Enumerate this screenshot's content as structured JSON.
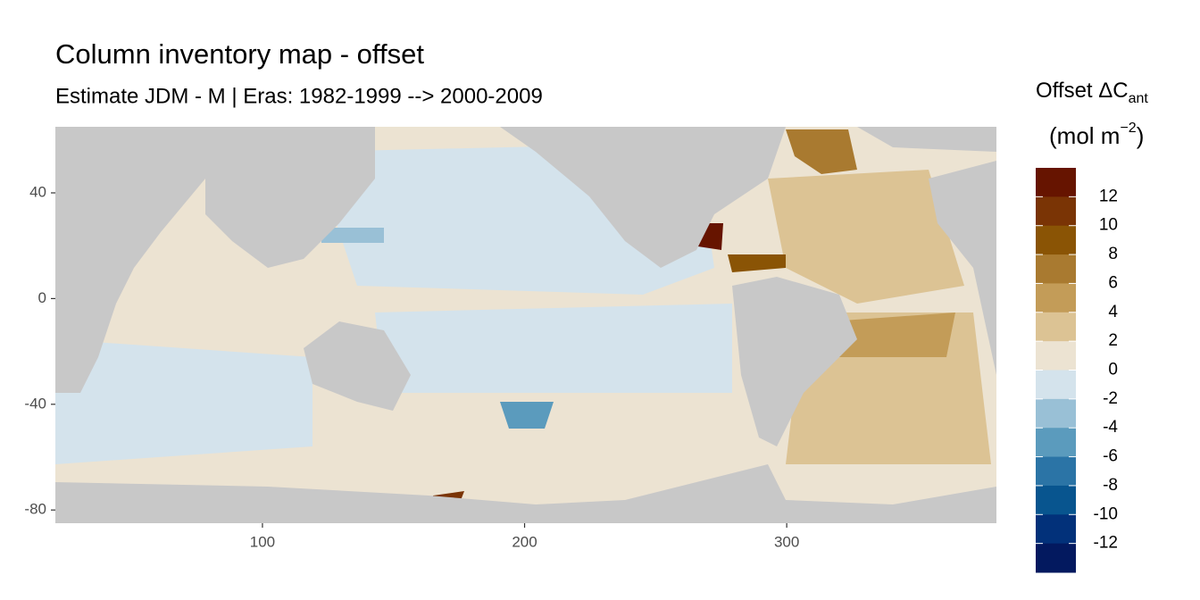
{
  "chart_data": {
    "type": "map",
    "title": "Column inventory map - offset",
    "subtitle": "Estimate JDM - M | Eras: 1982-1999 --> 2000-2009",
    "xlim": [
      21,
      380
    ],
    "xticks": [
      100,
      200,
      300
    ],
    "ylim": [
      -85,
      65
    ],
    "yticks": [
      40,
      0,
      -40,
      -80
    ],
    "legend": {
      "title": [
        "Offset ΔC",
        "ant"
      ],
      "units": [
        "(mol m",
        "−2",
        ")"
      ],
      "breaks": [
        12,
        10,
        8,
        6,
        4,
        2,
        0,
        -2,
        -4,
        -6,
        -8,
        -10,
        -12
      ],
      "colors": [
        "#661400",
        "#7a3405",
        "#8a5405",
        "#a97a30",
        "#c39c58",
        "#dcc394",
        "#ece3d2",
        "#d4e3ec",
        "#99c0d6",
        "#5b9bbd",
        "#2b74a6",
        "#08558f",
        "#02317a",
        "#03195f"
      ]
    }
  }
}
